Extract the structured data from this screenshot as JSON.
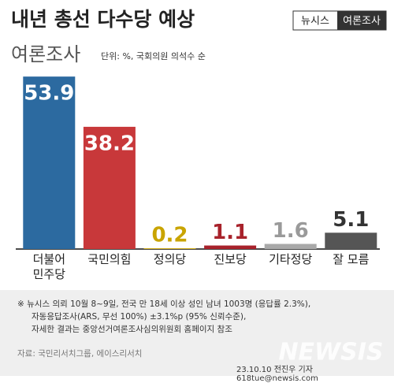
{
  "chart_data": {
    "type": "bar",
    "title": "내년 총선 다수당 예상",
    "subtitle": "여론조사",
    "unit_note": "단위: %, 국회의원 의석수 순",
    "badge": [
      "뉴시스",
      "여론조사"
    ],
    "categories": [
      "더불어\n민주당",
      "국민의힘",
      "정의당",
      "진보당",
      "기타정당",
      "잘 모름"
    ],
    "values": [
      53.9,
      38.2,
      0.2,
      1.1,
      1.6,
      5.1
    ],
    "colors": [
      "#2c6aa0",
      "#c8383a",
      "#e2b800",
      "#a8222b",
      "#a9a9a9",
      "#555555"
    ],
    "label_colors": [
      "#ffffff",
      "#ffffff",
      "#c9a400",
      "#a8222b",
      "#9a9a9a",
      "#333333"
    ],
    "notes": [
      "※  뉴시스 의뢰 10월 8~9일, 전국 만 18세 이상 성인 남녀 1003명 (응답률 2.3%),",
      "자동응답조사(ARS, 무선 100%) ±3.1%p (95% 신뢰수준),",
      "자세한 결과는 중앙선거여론조사심의위원회 홈페이지 참조"
    ],
    "source": "자료: 국민리서치그룹, 에이스리서치",
    "watermark": "NEWSIS",
    "credit": "23.10.10 전진우 기자 618tue@newsis.com"
  }
}
